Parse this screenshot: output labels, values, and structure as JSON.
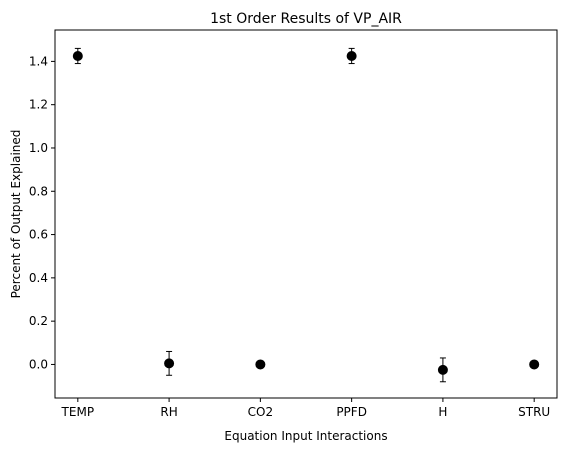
{
  "chart_data": {
    "type": "scatter",
    "title": "1st Order Results of VP_AIR",
    "xlabel": "Equation Input Interactions",
    "ylabel": "Percent of Output Explained",
    "categories": [
      "TEMP",
      "RH",
      "CO2",
      "PPFD",
      "H",
      "STRU"
    ],
    "values": [
      1.425,
      0.005,
      0.0,
      1.425,
      -0.025,
      0.0
    ],
    "errors": [
      0.035,
      0.055,
      0.0,
      0.035,
      0.055,
      0.0
    ],
    "ylim": [
      -0.155,
      1.545
    ],
    "yticks": [
      0.0,
      0.2,
      0.4,
      0.6,
      0.8,
      1.0,
      1.2,
      1.4
    ],
    "marker_color": "#000000",
    "grid": false,
    "legend": "none"
  }
}
